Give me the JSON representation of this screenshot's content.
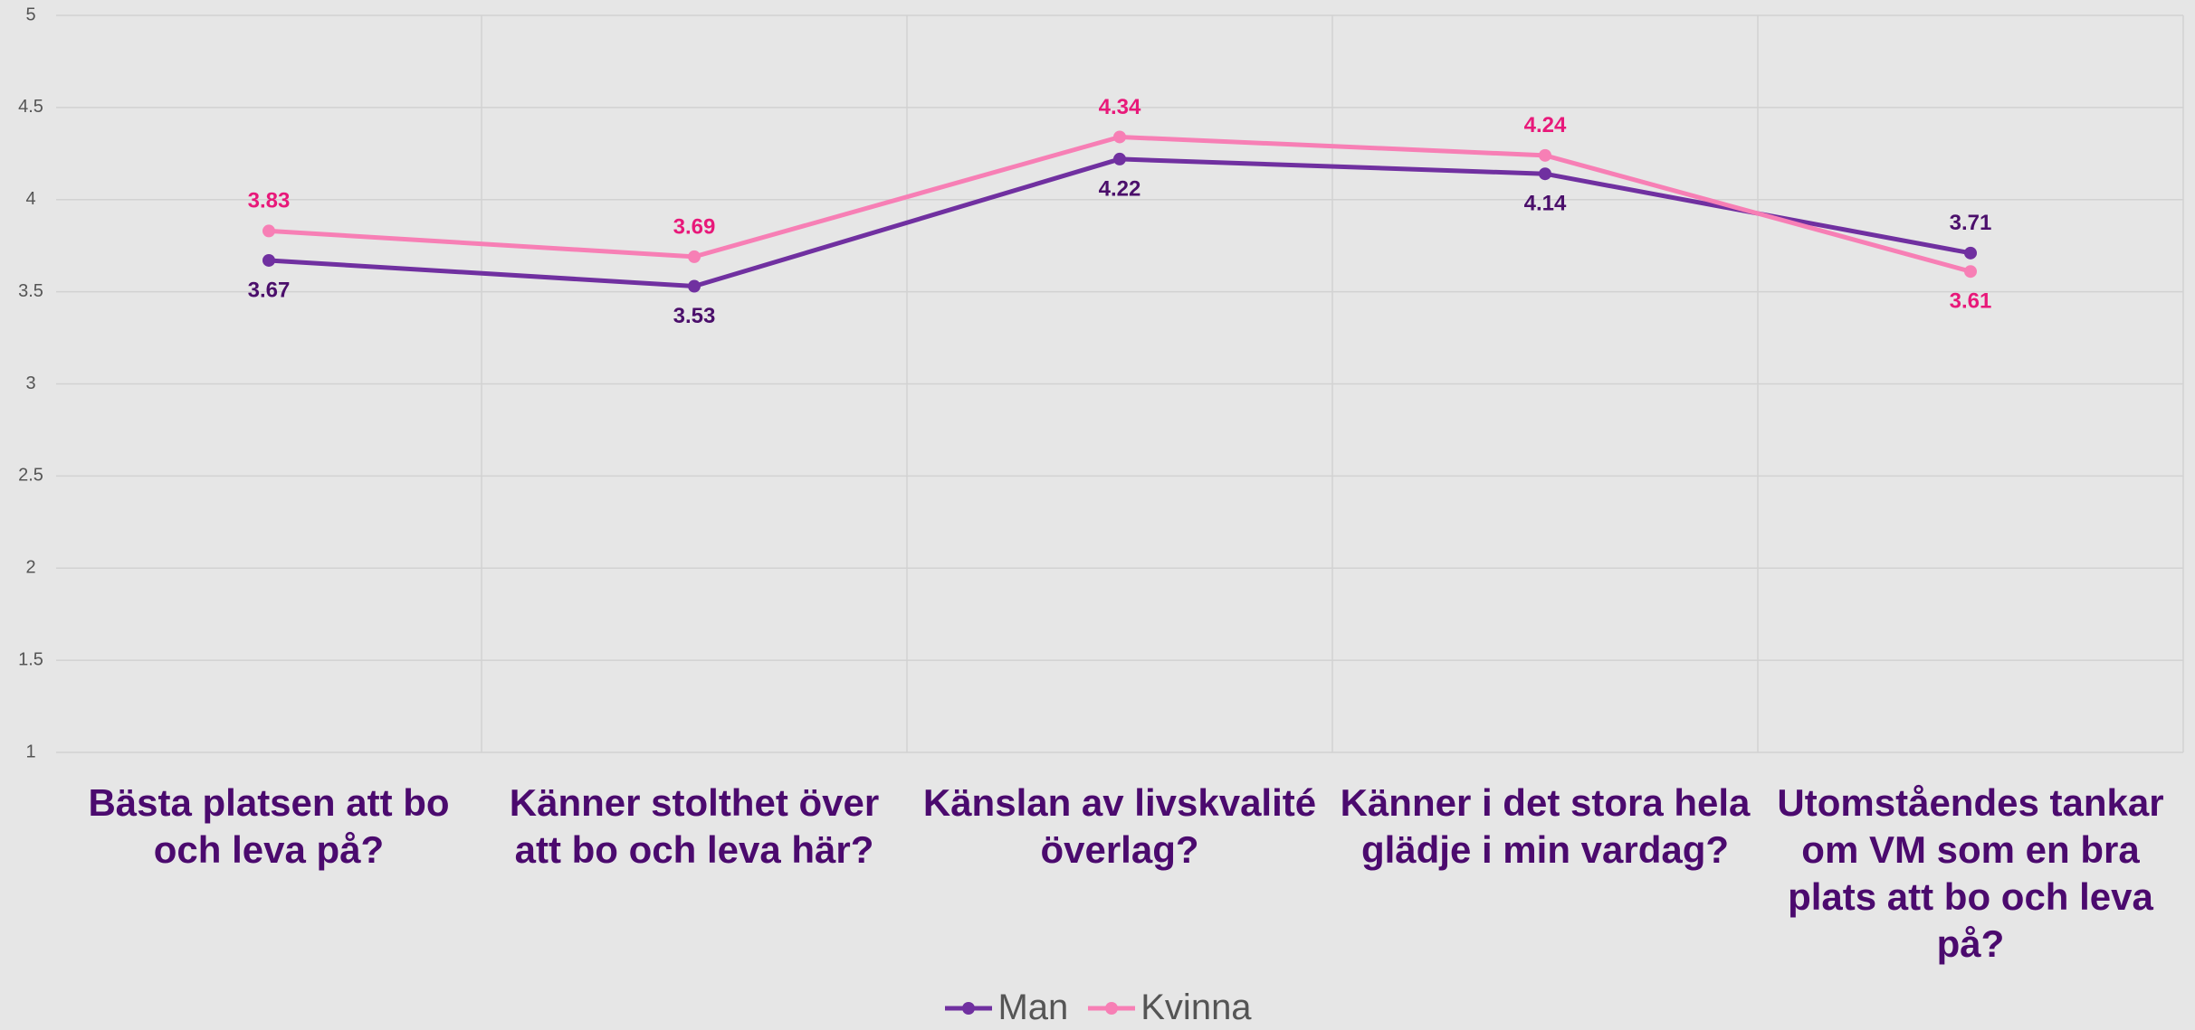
{
  "chart_data": {
    "type": "line",
    "categories": [
      "Bästa platsen att bo och leva på?",
      "Känner stolthet över att bo och leva här?",
      "Känslan av livskvalité överlag?",
      "Känner i det stora hela glädje i min vardag?",
      "Utomståendes tankar om VM som en bra plats att bo och leva på?"
    ],
    "series": [
      {
        "name": "Man",
        "color": "#7030a0",
        "label_color": "#4b0f6b",
        "values": [
          3.67,
          3.53,
          4.22,
          4.14,
          3.71
        ]
      },
      {
        "name": "Kvinna",
        "color": "#f77fb5",
        "label_color": "#e8197a",
        "values": [
          3.83,
          3.69,
          4.34,
          4.24,
          3.61
        ]
      }
    ],
    "ylim": [
      1,
      5
    ],
    "yticks": [
      1,
      1.5,
      2,
      2.5,
      3,
      3.5,
      4,
      4.5,
      5
    ],
    "grid": true,
    "legend": "bottom"
  }
}
